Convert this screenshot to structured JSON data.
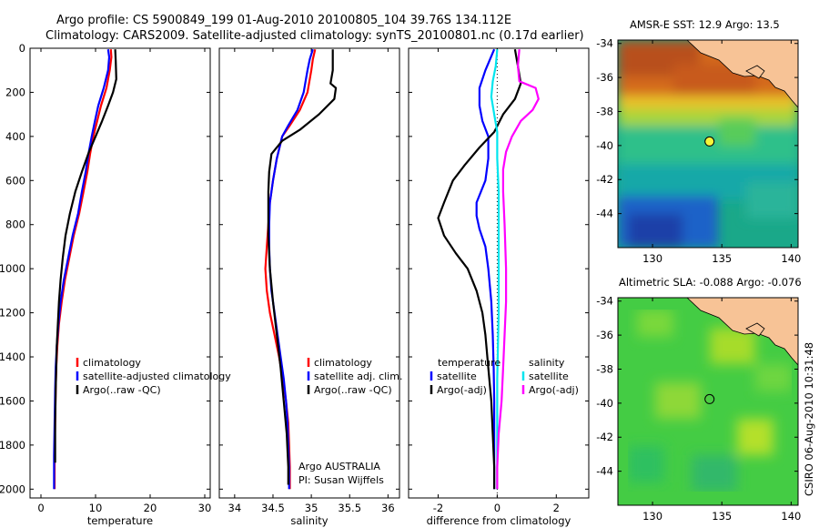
{
  "header": {
    "line1": "Argo profile: CS 5900849_199 01-Aug-2010 20100805_104 39.76S 134.112E",
    "line2": "Climatology: CARS2009. Satellite-adjusted climatology: synTS_20100801.nc (0.17d earlier)"
  },
  "colors": {
    "climatology": "#ff0000",
    "satellite": "#0000ff",
    "argo": "#000000",
    "sal_satellite": "#00e5ee",
    "sal_argo": "#ff00ff",
    "zero_line": "#000000"
  },
  "chart_data": [
    {
      "type": "line",
      "name": "temperature-panel",
      "xlabel": "temperature",
      "xlim": [
        -2,
        31
      ],
      "xticks": [
        "0",
        "10",
        "20",
        "30"
      ],
      "ylim": [
        2040,
        0
      ],
      "yticks": [
        "0",
        "200",
        "400",
        "600",
        "800",
        "1000",
        "1200",
        "1400",
        "1600",
        "1800",
        "2000"
      ],
      "legend": [
        "climatology",
        "satellite-adjusted climatology",
        "Argo(..raw -QC)"
      ],
      "series": [
        {
          "name": "climatology",
          "color": "#ff0000",
          "points": [
            [
              12.8,
              5
            ],
            [
              12.9,
              40
            ],
            [
              12.6,
              100
            ],
            [
              12.0,
              180
            ],
            [
              11.0,
              260
            ],
            [
              10.2,
              340
            ],
            [
              9.6,
              400
            ],
            [
              9.0,
              480
            ],
            [
              8.5,
              560
            ],
            [
              7.8,
              650
            ],
            [
              7.0,
              750
            ],
            [
              6.0,
              850
            ],
            [
              5.2,
              950
            ],
            [
              4.4,
              1050
            ],
            [
              3.8,
              1150
            ],
            [
              3.3,
              1250
            ],
            [
              3.0,
              1350
            ],
            [
              2.8,
              1450
            ],
            [
              2.7,
              1550
            ],
            [
              2.6,
              1700
            ],
            [
              2.5,
              1850
            ],
            [
              2.5,
              2000
            ]
          ]
        },
        {
          "name": "satellite-adjusted climatology",
          "color": "#0000ff",
          "points": [
            [
              12.3,
              5
            ],
            [
              12.5,
              40
            ],
            [
              12.3,
              100
            ],
            [
              11.5,
              180
            ],
            [
              10.5,
              260
            ],
            [
              9.8,
              340
            ],
            [
              9.3,
              400
            ],
            [
              8.7,
              480
            ],
            [
              8.2,
              560
            ],
            [
              7.5,
              650
            ],
            [
              6.8,
              750
            ],
            [
              5.8,
              850
            ],
            [
              5.0,
              950
            ],
            [
              4.2,
              1050
            ],
            [
              3.6,
              1150
            ],
            [
              3.2,
              1250
            ],
            [
              2.9,
              1350
            ],
            [
              2.7,
              1450
            ],
            [
              2.6,
              1550
            ],
            [
              2.5,
              1700
            ],
            [
              2.4,
              1850
            ],
            [
              2.4,
              2000
            ]
          ]
        },
        {
          "name": "Argo(..raw -QC)",
          "color": "#000000",
          "points": [
            [
              13.6,
              5
            ],
            [
              13.7,
              60
            ],
            [
              13.8,
              140
            ],
            [
              13.2,
              200
            ],
            [
              12.3,
              260
            ],
            [
              11.2,
              330
            ],
            [
              10.0,
              400
            ],
            [
              8.8,
              470
            ],
            [
              7.5,
              560
            ],
            [
              6.3,
              650
            ],
            [
              5.3,
              750
            ],
            [
              4.5,
              850
            ],
            [
              4.0,
              950
            ],
            [
              3.6,
              1050
            ],
            [
              3.3,
              1150
            ],
            [
              3.1,
              1250
            ],
            [
              2.9,
              1350
            ],
            [
              2.8,
              1450
            ],
            [
              2.7,
              1550
            ],
            [
              2.6,
              1700
            ],
            [
              2.6,
              1880
            ]
          ]
        }
      ]
    },
    {
      "type": "line",
      "name": "salinity-panel",
      "xlabel": "salinity",
      "xlim": [
        33.8,
        36.15
      ],
      "xticks": [
        "34",
        "34.5",
        "35",
        "35.5",
        "36"
      ],
      "ylim": [
        2040,
        0
      ],
      "legend": [
        "climatology",
        "satellite adj. clim.",
        "Argo(..raw -QC)"
      ],
      "annotations": [
        "Argo AUSTRALIA",
        "PI: Susan Wijffels"
      ],
      "series": [
        {
          "name": "climatology",
          "color": "#ff0000",
          "points": [
            [
              35.05,
              5
            ],
            [
              35.02,
              50
            ],
            [
              35.0,
              100
            ],
            [
              34.95,
              200
            ],
            [
              34.85,
              280
            ],
            [
              34.72,
              350
            ],
            [
              34.62,
              400
            ],
            [
              34.55,
              500
            ],
            [
              34.5,
              600
            ],
            [
              34.46,
              700
            ],
            [
              34.44,
              800
            ],
            [
              34.42,
              900
            ],
            [
              34.4,
              1000
            ],
            [
              34.42,
              1100
            ],
            [
              34.46,
              1200
            ],
            [
              34.52,
              1300
            ],
            [
              34.58,
              1400
            ],
            [
              34.63,
              1500
            ],
            [
              34.67,
              1600
            ],
            [
              34.7,
              1700
            ],
            [
              34.71,
              1800
            ],
            [
              34.72,
              1900
            ],
            [
              34.72,
              2000
            ]
          ]
        },
        {
          "name": "satellite adj. clim.",
          "color": "#0000ff",
          "points": [
            [
              35.02,
              5
            ],
            [
              34.98,
              50
            ],
            [
              34.95,
              100
            ],
            [
              34.9,
              200
            ],
            [
              34.82,
              280
            ],
            [
              34.7,
              350
            ],
            [
              34.62,
              400
            ],
            [
              34.55,
              500
            ],
            [
              34.5,
              600
            ],
            [
              34.46,
              700
            ],
            [
              34.45,
              800
            ],
            [
              34.45,
              900
            ],
            [
              34.46,
              1000
            ],
            [
              34.48,
              1100
            ],
            [
              34.52,
              1200
            ],
            [
              34.56,
              1300
            ],
            [
              34.6,
              1400
            ],
            [
              34.64,
              1500
            ],
            [
              34.67,
              1600
            ],
            [
              34.69,
              1700
            ],
            [
              34.7,
              1800
            ],
            [
              34.71,
              1900
            ],
            [
              34.71,
              2000
            ]
          ]
        },
        {
          "name": "Argo(..raw -QC)",
          "color": "#000000",
          "points": [
            [
              35.28,
              5
            ],
            [
              35.28,
              100
            ],
            [
              35.25,
              160
            ],
            [
              35.32,
              180
            ],
            [
              35.3,
              230
            ],
            [
              35.1,
              300
            ],
            [
              34.85,
              370
            ],
            [
              34.62,
              420
            ],
            [
              34.48,
              480
            ],
            [
              34.45,
              560
            ],
            [
              34.44,
              650
            ],
            [
              34.44,
              750
            ],
            [
              34.44,
              850
            ],
            [
              34.46,
              1000
            ],
            [
              34.5,
              1150
            ],
            [
              34.55,
              1300
            ],
            [
              34.6,
              1450
            ],
            [
              34.64,
              1600
            ],
            [
              34.68,
              1750
            ],
            [
              34.7,
              1900
            ],
            [
              34.7,
              1980
            ]
          ]
        }
      ]
    },
    {
      "type": "line",
      "name": "difference-panel",
      "xlabel": "difference from climatology",
      "xlim": [
        -3,
        3.1
      ],
      "xticks": [
        "-2",
        "0",
        "2"
      ],
      "ylim": [
        2040,
        0
      ],
      "legend_left_title": "temperature",
      "legend_left": [
        "satellite",
        "Argo(-adj)"
      ],
      "legend_right_title": "salinity",
      "legend_right": [
        "satellite",
        "Argo(-adj)"
      ],
      "series": [
        {
          "name": "temperature satellite",
          "color": "#0000ff",
          "points": [
            [
              -0.1,
              5
            ],
            [
              -0.4,
              100
            ],
            [
              -0.6,
              180
            ],
            [
              -0.6,
              260
            ],
            [
              -0.5,
              330
            ],
            [
              -0.3,
              400
            ],
            [
              -0.3,
              500
            ],
            [
              -0.4,
              600
            ],
            [
              -0.7,
              700
            ],
            [
              -0.7,
              760
            ],
            [
              -0.6,
              820
            ],
            [
              -0.4,
              900
            ],
            [
              -0.3,
              1000
            ],
            [
              -0.2,
              1150
            ],
            [
              -0.15,
              1300
            ],
            [
              -0.12,
              1450
            ],
            [
              -0.1,
              1600
            ],
            [
              -0.1,
              1800
            ],
            [
              -0.1,
              2000
            ]
          ]
        },
        {
          "name": "temperature Argo(-adj)",
          "color": "#000000",
          "points": [
            [
              0.6,
              5
            ],
            [
              0.7,
              80
            ],
            [
              0.8,
              160
            ],
            [
              0.6,
              230
            ],
            [
              0.2,
              300
            ],
            [
              -0.1,
              380
            ],
            [
              -0.6,
              450
            ],
            [
              -1.1,
              530
            ],
            [
              -1.5,
              600
            ],
            [
              -1.8,
              700
            ],
            [
              -2.0,
              770
            ],
            [
              -1.8,
              850
            ],
            [
              -1.4,
              930
            ],
            [
              -1.0,
              1000
            ],
            [
              -0.7,
              1100
            ],
            [
              -0.5,
              1200
            ],
            [
              -0.4,
              1300
            ],
            [
              -0.3,
              1450
            ],
            [
              -0.2,
              1600
            ],
            [
              -0.15,
              1750
            ],
            [
              -0.1,
              1900
            ],
            [
              -0.1,
              2000
            ]
          ]
        },
        {
          "name": "salinity satellite",
          "color": "#00e5ee",
          "points": [
            [
              0.0,
              5
            ],
            [
              -0.05,
              80
            ],
            [
              -0.15,
              150
            ],
            [
              -0.2,
              220
            ],
            [
              -0.1,
              300
            ],
            [
              0.0,
              380
            ],
            [
              0.0,
              500
            ],
            [
              0.05,
              650
            ],
            [
              0.05,
              800
            ],
            [
              0.05,
              1000
            ],
            [
              0.05,
              1200
            ],
            [
              0.0,
              1500
            ],
            [
              0.0,
              1800
            ],
            [
              0.0,
              2000
            ]
          ]
        },
        {
          "name": "salinity Argo(-adj)",
          "color": "#ff00ff",
          "points": [
            [
              0.75,
              5
            ],
            [
              0.7,
              80
            ],
            [
              0.75,
              150
            ],
            [
              1.3,
              180
            ],
            [
              1.4,
              230
            ],
            [
              1.2,
              280
            ],
            [
              0.8,
              330
            ],
            [
              0.5,
              400
            ],
            [
              0.3,
              470
            ],
            [
              0.2,
              550
            ],
            [
              0.2,
              650
            ],
            [
              0.25,
              800
            ],
            [
              0.3,
              1000
            ],
            [
              0.3,
              1150
            ],
            [
              0.25,
              1300
            ],
            [
              0.2,
              1450
            ],
            [
              0.15,
              1600
            ],
            [
              0.05,
              1750
            ],
            [
              0.0,
              1900
            ],
            [
              0.0,
              2000
            ]
          ]
        }
      ]
    },
    {
      "type": "heatmap",
      "name": "sst-map",
      "title": "AMSR-E SST: 12.9 Argo: 13.5",
      "xlim": [
        127.5,
        140.5
      ],
      "ylim": [
        -46,
        -33.8
      ],
      "xticks": [
        "130",
        "135",
        "140"
      ],
      "yticks": [
        "-34",
        "-36",
        "-38",
        "-40",
        "-42",
        "-44"
      ],
      "marker": {
        "lon": 134.112,
        "lat": -39.76
      }
    },
    {
      "type": "heatmap",
      "name": "sla-map",
      "title": "Altimetric SLA: -0.088 Argo: -0.076",
      "xlim": [
        127.5,
        140.5
      ],
      "ylim": [
        -46,
        -33.8
      ],
      "xticks": [
        "130",
        "135",
        "140"
      ],
      "yticks": [
        "-34",
        "-36",
        "-38",
        "-40",
        "-42",
        "-44"
      ],
      "marker": {
        "lon": 134.112,
        "lat": -39.76
      }
    }
  ],
  "credit": "CSIRO 06-Aug-2010 10:31:48"
}
